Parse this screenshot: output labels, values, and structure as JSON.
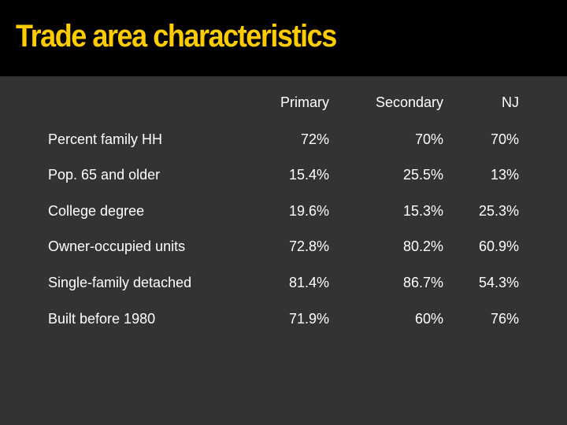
{
  "slide": {
    "title": "Trade area characteristics"
  },
  "table": {
    "columns": [
      "Primary",
      "Secondary",
      "NJ"
    ],
    "rows": [
      {
        "label": "Percent family HH",
        "values": [
          "72%",
          "70%",
          "70%"
        ]
      },
      {
        "label": "Pop. 65 and older",
        "values": [
          "15.4%",
          "25.5%",
          "13%"
        ]
      },
      {
        "label": "College degree",
        "values": [
          "19.6%",
          "15.3%",
          "25.3%"
        ]
      },
      {
        "label": "Owner-occupied units",
        "values": [
          "72.8%",
          "80.2%",
          "60.9%"
        ]
      },
      {
        "label": "Single-family detached",
        "values": [
          "81.4%",
          "86.7%",
          "54.3%"
        ]
      },
      {
        "label": "Built before 1980",
        "values": [
          "71.9%",
          "60%",
          "76%"
        ]
      }
    ]
  },
  "colors": {
    "title": "#ffcc00",
    "title_bar": "#000000",
    "background": "#333333",
    "text": "#ffffff"
  }
}
